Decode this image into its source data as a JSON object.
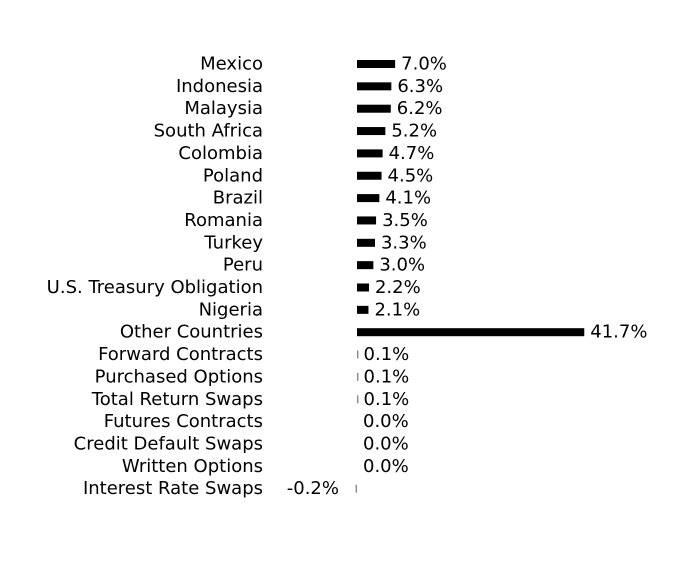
{
  "chart_data": {
    "type": "bar",
    "orientation": "horizontal",
    "title": "",
    "xlabel": "",
    "ylabel": "",
    "grid": false,
    "legend": "none",
    "bar_color": "#000000",
    "value_suffix": "%",
    "categories": [
      "Mexico",
      "Indonesia",
      "Malaysia",
      "South Africa",
      "Colombia",
      "Poland",
      "Brazil",
      "Romania",
      "Turkey",
      "Peru",
      "U.S. Treasury Obligation",
      "Nigeria",
      "Other Countries",
      "Forward Contracts",
      "Purchased Options",
      "Total Return Swaps",
      "Futures Contracts",
      "Credit Default Swaps",
      "Written Options",
      "Interest Rate Swaps"
    ],
    "values": [
      7.0,
      6.3,
      6.2,
      5.2,
      4.7,
      4.5,
      4.1,
      3.5,
      3.3,
      3.0,
      2.2,
      2.1,
      41.7,
      0.1,
      0.1,
      0.1,
      0.0,
      0.0,
      0.0,
      -0.2
    ],
    "value_labels": [
      "7.0%",
      "6.3%",
      "6.2%",
      "5.2%",
      "4.7%",
      "4.5%",
      "4.1%",
      "3.5%",
      "3.3%",
      "3.0%",
      "2.2%",
      "2.1%",
      "41.7%",
      "0.1%",
      "0.1%",
      "0.1%",
      "0.0%",
      "0.0%",
      "0.0%",
      "-0.2%"
    ]
  }
}
